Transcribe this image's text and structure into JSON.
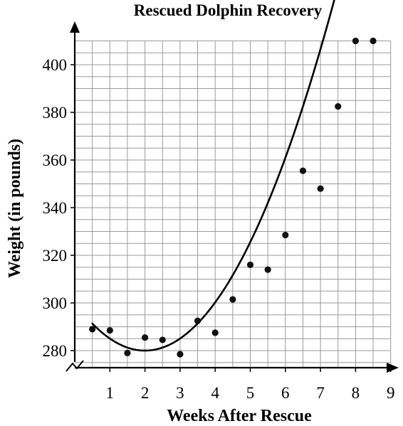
{
  "chart_data": {
    "type": "scatter",
    "title": "Rescued Dolphin Recovery",
    "xlabel": "Weeks After Rescue",
    "ylabel": "Weight (in pounds)",
    "xlim": [
      0,
      9
    ],
    "ylim": [
      270,
      410
    ],
    "x_ticks": [
      "1",
      "2",
      "3",
      "4",
      "5",
      "6",
      "7",
      "8",
      "9"
    ],
    "y_ticks": [
      "280",
      "300",
      "320",
      "340",
      "360",
      "380",
      "400"
    ],
    "grid": true,
    "y_axis_break": true,
    "points": [
      {
        "x": 0.5,
        "y": 289
      },
      {
        "x": 1.0,
        "y": 288.5
      },
      {
        "x": 1.5,
        "y": 279
      },
      {
        "x": 2.0,
        "y": 285.5
      },
      {
        "x": 2.5,
        "y": 284.5
      },
      {
        "x": 3.0,
        "y": 278.5
      },
      {
        "x": 3.5,
        "y": 292.5
      },
      {
        "x": 4.0,
        "y": 287.5
      },
      {
        "x": 4.5,
        "y": 301.5
      },
      {
        "x": 5.0,
        "y": 316
      },
      {
        "x": 5.5,
        "y": 314
      },
      {
        "x": 6.0,
        "y": 328.5
      },
      {
        "x": 6.5,
        "y": 355.5
      },
      {
        "x": 7.0,
        "y": 348
      },
      {
        "x": 7.5,
        "y": 382.5
      },
      {
        "x": 8.0,
        "y": 410
      },
      {
        "x": 8.5,
        "y": 410
      }
    ],
    "trend_curve": {
      "type": "quadratic",
      "vertex": [
        2.0,
        280
      ],
      "a": 5.06,
      "x_range": [
        0.5,
        8.25
      ]
    }
  }
}
